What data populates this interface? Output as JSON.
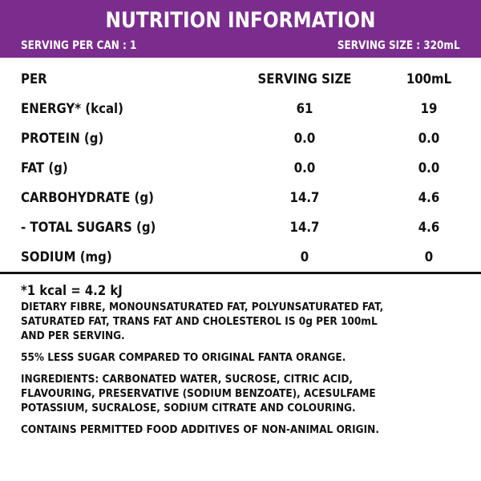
{
  "header": {
    "title": "NUTRITION INFORMATION",
    "serving_per_can": "SERVING PER CAN : 1",
    "serving_size": "SERVING SIZE : 320mL",
    "background_color": "#7b2d8e"
  },
  "table": {
    "columns": [
      "PER",
      "SERVING SIZE",
      "100mL"
    ],
    "rows": [
      {
        "label": "ENERGY* (kcal)",
        "serving": "61",
        "per100": "19"
      },
      {
        "label": "PROTEIN (g)",
        "serving": "0.0",
        "per100": "0.0"
      },
      {
        "label": "FAT (g)",
        "serving": "0.0",
        "per100": "0.0"
      },
      {
        "label": "CARBOHYDRATE (g)",
        "serving": "14.7",
        "per100": "4.6"
      },
      {
        "label": "- TOTAL SUGARS (g)",
        "serving": "14.7",
        "per100": "4.6"
      },
      {
        "label": "SODIUM (mg)",
        "serving": "0",
        "per100": "0"
      }
    ]
  },
  "notes": {
    "kcal_note": "*1 kcal = 4.2 kJ",
    "fibre_lines": [
      "DIETARY FIBRE, MONOUNSATURATED FAT, POLYUNSATURATED FAT,",
      "SATURATED FAT, TRANS FAT AND CHOLESTEROL IS 0g PER 100mL",
      "AND PER SERVING."
    ],
    "sugar_note": "55% LESS SUGAR COMPARED TO ORIGINAL FANTA ORANGE.",
    "ingredient_lines": [
      "INGREDIENTS: CARBONATED WATER, SUCROSE, CITRIC ACID,",
      "FLAVOURING, PRESERVATIVE (SODIUM BENZOATE), ACESULFAME",
      "POTASSIUM, SUCRALOSE, SODIUM CITRATE AND COLOURING."
    ],
    "additives_note": "CONTAINS PERMITTED FOOD ADDITIVES OF NON-ANIMAL ORIGIN."
  }
}
